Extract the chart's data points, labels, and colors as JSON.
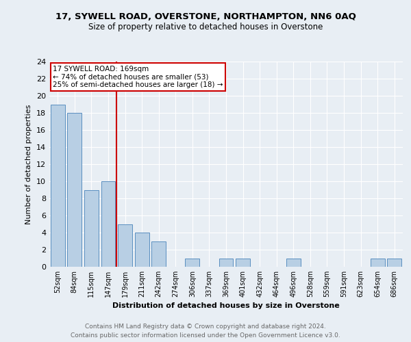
{
  "title1": "17, SYWELL ROAD, OVERSTONE, NORTHAMPTON, NN6 0AQ",
  "title2": "Size of property relative to detached houses in Overstone",
  "xlabel": "Distribution of detached houses by size in Overstone",
  "ylabel": "Number of detached properties",
  "bar_labels": [
    "52sqm",
    "84sqm",
    "115sqm",
    "147sqm",
    "179sqm",
    "211sqm",
    "242sqm",
    "274sqm",
    "306sqm",
    "337sqm",
    "369sqm",
    "401sqm",
    "432sqm",
    "464sqm",
    "496sqm",
    "528sqm",
    "559sqm",
    "591sqm",
    "623sqm",
    "654sqm",
    "686sqm"
  ],
  "bar_values": [
    19,
    18,
    9,
    10,
    5,
    4,
    3,
    0,
    1,
    0,
    1,
    1,
    0,
    0,
    1,
    0,
    0,
    0,
    0,
    1,
    1
  ],
  "bar_color": "#b8cfe4",
  "bar_edge_color": "#5a8fc0",
  "annotation_text_line1": "17 SYWELL ROAD: 169sqm",
  "annotation_text_line2": "← 74% of detached houses are smaller (53)",
  "annotation_text_line3": "25% of semi-detached houses are larger (18) →",
  "vline_color": "#cc0000",
  "ylim": [
    0,
    24
  ],
  "yticks": [
    0,
    2,
    4,
    6,
    8,
    10,
    12,
    14,
    16,
    18,
    20,
    22,
    24
  ],
  "footer_line1": "Contains HM Land Registry data © Crown copyright and database right 2024.",
  "footer_line2": "Contains public sector information licensed under the Open Government Licence v3.0.",
  "background_color": "#e8eef4"
}
